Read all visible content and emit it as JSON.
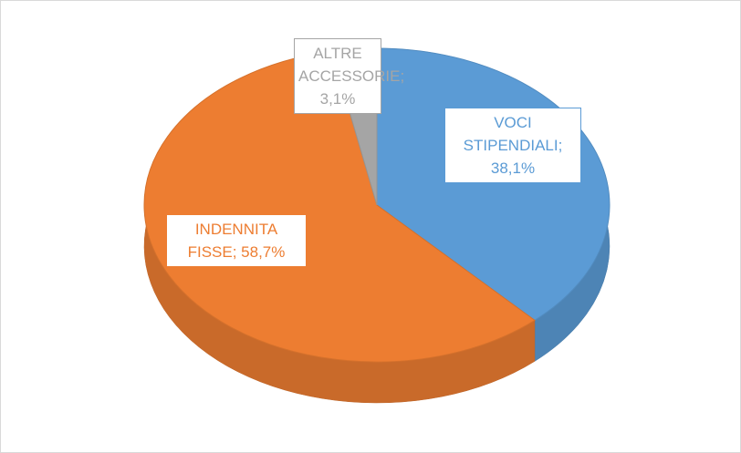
{
  "chart_data": {
    "type": "pie",
    "values": [
      38.1,
      58.7,
      3.1
    ],
    "value_labels": [
      "VOCI STIPENDIALI; 38,1%",
      "INDENNITA FISSE; 58,7%",
      "ALTRE ACCESSORIE; 3,1%"
    ],
    "colors": [
      "#5b9bd5",
      "#ed7d31",
      "#a5a5a5"
    ]
  }
}
